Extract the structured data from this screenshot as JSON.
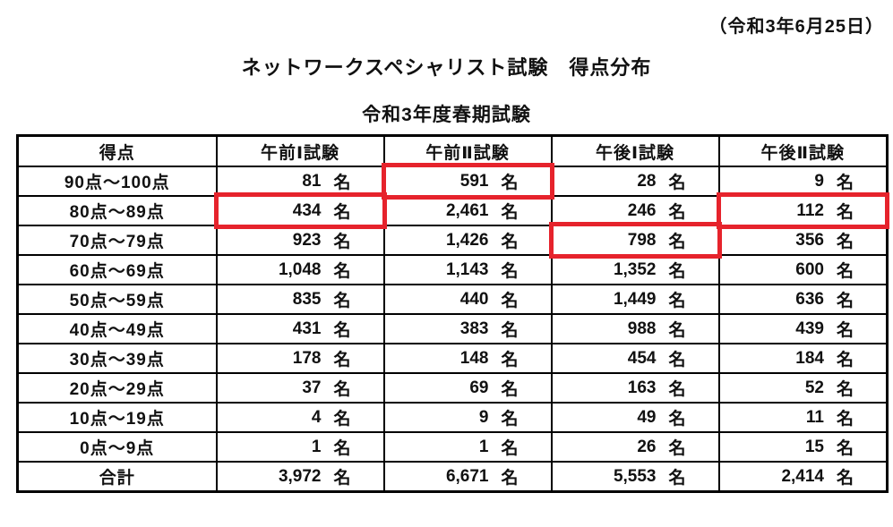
{
  "header": {
    "date": "（令和3年6月25日）",
    "title": "ネットワークスペシャリスト試験　得点分布",
    "subtitle": "令和3年度春期試験"
  },
  "table": {
    "columns": [
      "得点",
      "午前Ⅰ試験",
      "午前Ⅱ試験",
      "午後Ⅰ試験",
      "午後Ⅱ試験"
    ],
    "unit": "名",
    "rows": [
      {
        "label": "90点～100点",
        "values": [
          "81",
          "591",
          "28",
          "9"
        ]
      },
      {
        "label": "80点～89点",
        "values": [
          "434",
          "2,461",
          "246",
          "112"
        ]
      },
      {
        "label": "70点～79点",
        "values": [
          "923",
          "1,426",
          "798",
          "356"
        ]
      },
      {
        "label": "60点～69点",
        "values": [
          "1,048",
          "1,143",
          "1,352",
          "600"
        ]
      },
      {
        "label": "50点～59点",
        "values": [
          "835",
          "440",
          "1,449",
          "636"
        ]
      },
      {
        "label": "40点～49点",
        "values": [
          "431",
          "383",
          "988",
          "439"
        ]
      },
      {
        "label": "30点～39点",
        "values": [
          "178",
          "148",
          "454",
          "184"
        ]
      },
      {
        "label": "20点～29点",
        "values": [
          "37",
          "69",
          "163",
          "52"
        ]
      },
      {
        "label": "10点～19点",
        "values": [
          "4",
          "9",
          "49",
          "11"
        ]
      },
      {
        "label": "0点～9点",
        "values": [
          "1",
          "1",
          "26",
          "15"
        ]
      },
      {
        "label": "合計",
        "values": [
          "3,972",
          "6,671",
          "5,553",
          "2,414"
        ]
      }
    ],
    "highlights": [
      {
        "row": 0,
        "col": 1
      },
      {
        "row": 1,
        "col": 0
      },
      {
        "row": 1,
        "col": 3
      },
      {
        "row": 2,
        "col": 2
      }
    ]
  },
  "colors": {
    "highlight_box": "#e6232c",
    "border": "#000000",
    "text": "#111111"
  }
}
